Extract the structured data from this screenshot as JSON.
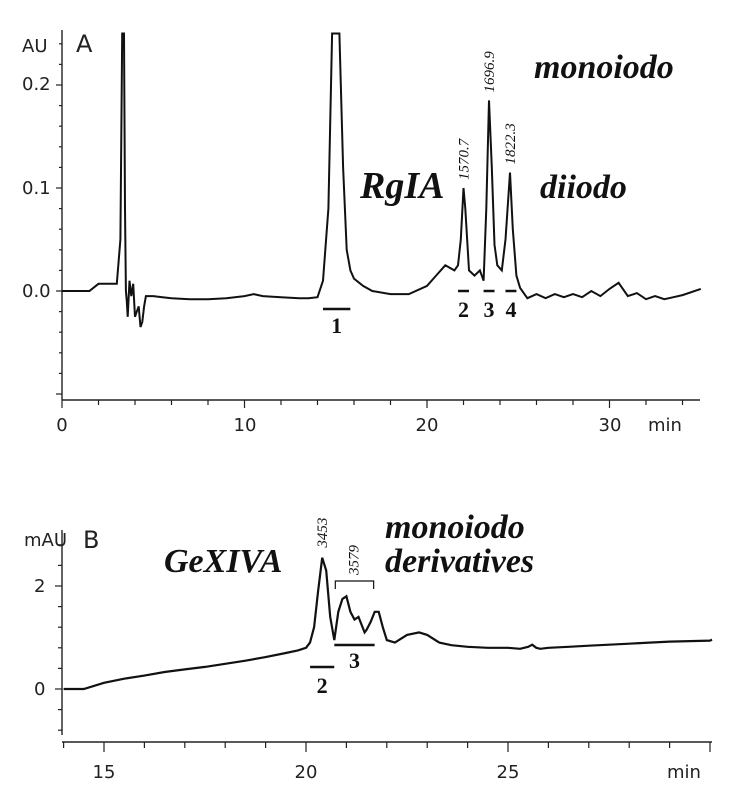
{
  "chart_data": [
    {
      "type": "line",
      "panel_label": "A",
      "y_unit": "AU",
      "x_unit": "min",
      "xlim": [
        0,
        35
      ],
      "ylim": [
        -0.1,
        0.25
      ],
      "x_ticks": [
        "0",
        "10",
        "20",
        "30"
      ],
      "y_ticks": [
        "0.0",
        "0.1",
        "0.2"
      ],
      "series": [
        {
          "x": [
            0,
            1.5,
            2.0,
            3.0,
            3.2,
            3.3,
            3.35,
            3.4,
            3.45,
            3.5,
            3.55,
            3.6,
            3.7,
            3.8,
            3.9,
            4.0,
            4.1,
            4.2,
            4.3,
            4.4,
            4.5,
            4.6,
            4.8,
            5.0,
            5.5,
            6,
            7,
            8,
            9,
            10,
            10.5,
            11,
            12,
            13,
            13.5,
            14,
            14.3,
            14.6,
            14.8,
            15.0,
            15.2,
            15.4,
            15.6,
            15.8,
            16.0,
            16.5,
            17,
            18,
            19,
            20,
            20.5,
            21.0,
            21.5,
            21.7,
            21.85,
            22.0,
            22.1,
            22.3,
            22.6,
            22.9,
            23.1,
            23.25,
            23.4,
            23.55,
            23.7,
            23.85,
            24.1,
            24.3,
            24.55,
            24.7,
            24.9,
            25.1,
            25.5,
            26,
            26.5,
            27,
            27.5,
            28,
            28.5,
            29,
            29.5,
            30,
            30.5,
            31,
            31.5,
            32,
            32.5,
            33,
            33.5,
            34,
            35
          ],
          "y": [
            0.0,
            0.0,
            0.007,
            0.007,
            0.05,
            0.25,
            0.25,
            0.25,
            0.08,
            0.0,
            -0.01,
            -0.025,
            0.01,
            -0.005,
            0.007,
            -0.025,
            -0.02,
            -0.015,
            -0.035,
            -0.03,
            -0.015,
            -0.005,
            -0.005,
            -0.005,
            -0.006,
            -0.007,
            -0.008,
            -0.008,
            -0.007,
            -0.005,
            -0.003,
            -0.005,
            -0.006,
            -0.007,
            -0.007,
            -0.006,
            0.01,
            0.08,
            0.25,
            0.25,
            0.25,
            0.12,
            0.04,
            0.02,
            0.012,
            0.005,
            0.0,
            -0.003,
            -0.003,
            0.005,
            0.015,
            0.025,
            0.02,
            0.025,
            0.05,
            0.1,
            0.08,
            0.02,
            0.015,
            0.02,
            0.01,
            0.08,
            0.185,
            0.12,
            0.045,
            0.025,
            0.02,
            0.05,
            0.115,
            0.06,
            0.015,
            0.003,
            -0.007,
            -0.003,
            -0.007,
            -0.003,
            -0.006,
            -0.003,
            -0.006,
            0.0,
            -0.005,
            0.002,
            0.008,
            -0.005,
            -0.002,
            -0.008,
            -0.005,
            -0.008,
            -0.006,
            -0.004,
            0.002
          ]
        }
      ],
      "peak_labels": [
        {
          "x": 22.0,
          "y": 0.1,
          "text": "1570.7"
        },
        {
          "x": 23.4,
          "y": 0.185,
          "text": "1696.9"
        },
        {
          "x": 24.55,
          "y": 0.115,
          "text": "1822.3"
        }
      ],
      "fractions": [
        {
          "label": "1",
          "x_from": 14.3,
          "x_to": 15.8,
          "dashed": false
        },
        {
          "label": "2",
          "x_from": 21.7,
          "x_to": 22.3,
          "dashed": true
        },
        {
          "label": "3",
          "x_from": 23.1,
          "x_to": 23.7,
          "dashed": true
        },
        {
          "label": "4",
          "x_from": 24.3,
          "x_to": 24.9,
          "dashed": true
        }
      ],
      "annotations": [
        "monoiodo",
        "RgIA",
        "diiodo"
      ]
    },
    {
      "type": "line",
      "panel_label": "B",
      "y_unit": "mAU",
      "x_unit": "min",
      "xlim": [
        14,
        30.5
      ],
      "ylim": [
        -1.0,
        3.6
      ],
      "x_ticks": [
        "15",
        "20",
        "25"
      ],
      "y_ticks": [
        "0",
        "2"
      ],
      "series": [
        {
          "x": [
            14,
            14.5,
            15,
            15.5,
            16,
            16.5,
            17,
            17.5,
            18,
            18.5,
            19,
            19.5,
            19.8,
            20.0,
            20.1,
            20.2,
            20.3,
            20.4,
            20.5,
            20.6,
            20.7,
            20.8,
            20.9,
            21.0,
            21.1,
            21.2,
            21.3,
            21.35,
            21.45,
            21.5,
            21.6,
            21.7,
            21.8,
            21.9,
            22.0,
            22.2,
            22.5,
            22.8,
            23.0,
            23.3,
            23.6,
            24.0,
            24.5,
            25.0,
            25.3,
            25.5,
            25.6,
            25.7,
            25.8,
            26.0,
            26.5,
            27,
            27.5,
            28,
            28.5,
            29,
            29.5,
            30,
            30.5
          ],
          "y": [
            0.0,
            0.0,
            0.12,
            0.2,
            0.26,
            0.33,
            0.38,
            0.43,
            0.49,
            0.55,
            0.62,
            0.7,
            0.75,
            0.8,
            0.9,
            1.2,
            1.9,
            2.55,
            2.3,
            1.4,
            0.95,
            1.5,
            1.75,
            1.8,
            1.5,
            1.35,
            1.4,
            1.3,
            1.1,
            1.15,
            1.3,
            1.5,
            1.5,
            1.2,
            0.95,
            0.9,
            1.05,
            1.1,
            1.05,
            0.9,
            0.85,
            0.82,
            0.8,
            0.8,
            0.78,
            0.82,
            0.86,
            0.8,
            0.78,
            0.8,
            0.82,
            0.84,
            0.86,
            0.88,
            0.9,
            0.92,
            0.93,
            0.94,
            0.96
          ]
        }
      ],
      "peak_labels": [
        {
          "x": 20.4,
          "y": 2.55,
          "text": "3453"
        }
      ],
      "bracket": {
        "x_from": 20.8,
        "x_to": 21.6,
        "y": 2.05,
        "text": "3579"
      },
      "fractions": [
        {
          "label": "2",
          "x_from": 20.2,
          "x_to": 20.6,
          "dashed": false
        },
        {
          "label": "3",
          "x_from": 20.8,
          "x_to": 21.6,
          "dashed": false
        }
      ],
      "annotations": [
        "GeXIVA",
        "monoiodo",
        "derivatives"
      ]
    }
  ]
}
